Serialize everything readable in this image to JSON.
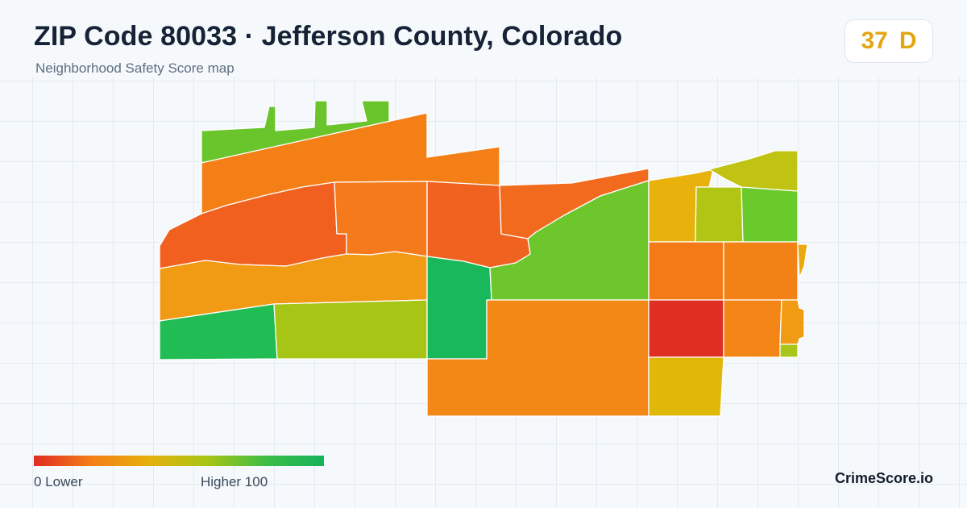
{
  "header": {
    "title": "ZIP Code 80033 · Jefferson County, Colorado",
    "subtitle": "Neighborhood Safety Score map"
  },
  "score": {
    "value": "37",
    "grade": "D",
    "color": "#e3a613"
  },
  "map": {
    "regions": [
      {
        "id": "north-strip",
        "color": "#6ac42c"
      },
      {
        "id": "northwest-band",
        "color": "#f57f17"
      },
      {
        "id": "west-upper",
        "color": "#f26020"
      },
      {
        "id": "north-central",
        "color": "#f47a1b"
      },
      {
        "id": "central-north",
        "color": "#f0621f"
      },
      {
        "id": "central-strip",
        "color": "#f26a1d"
      },
      {
        "id": "west-middle",
        "color": "#f19a14"
      },
      {
        "id": "southwest",
        "color": "#22bc55"
      },
      {
        "id": "south-west-central",
        "color": "#a7c514"
      },
      {
        "id": "center-green",
        "color": "#19b95b"
      },
      {
        "id": "center-east",
        "color": "#6dc72c"
      },
      {
        "id": "south-central",
        "color": "#f38817"
      },
      {
        "id": "east-north-a",
        "color": "#e8b10b"
      },
      {
        "id": "east-north-b",
        "color": "#b1c514"
      },
      {
        "id": "east-north-c",
        "color": "#6ac92b"
      },
      {
        "id": "east-north-d",
        "color": "#c0c214"
      },
      {
        "id": "east-middle-a",
        "color": "#f47a18"
      },
      {
        "id": "east-middle-b",
        "color": "#f28216"
      },
      {
        "id": "east-edge-a",
        "color": "#eca80f"
      },
      {
        "id": "east-south-a",
        "color": "#e02f22"
      },
      {
        "id": "east-south-b",
        "color": "#f38517"
      },
      {
        "id": "east-edge-b",
        "color": "#f19a14"
      },
      {
        "id": "east-edge-c",
        "color": "#a8c51a"
      },
      {
        "id": "south-east",
        "color": "#e0b80a"
      }
    ]
  },
  "legend": {
    "min_label": "0  Lower",
    "max_label": "Higher  100",
    "gradient": [
      "#e02b22",
      "#f57f17",
      "#e5b10b",
      "#a6c515",
      "#3cbd46",
      "#16b25c"
    ]
  },
  "brand": "CrimeScore.io"
}
